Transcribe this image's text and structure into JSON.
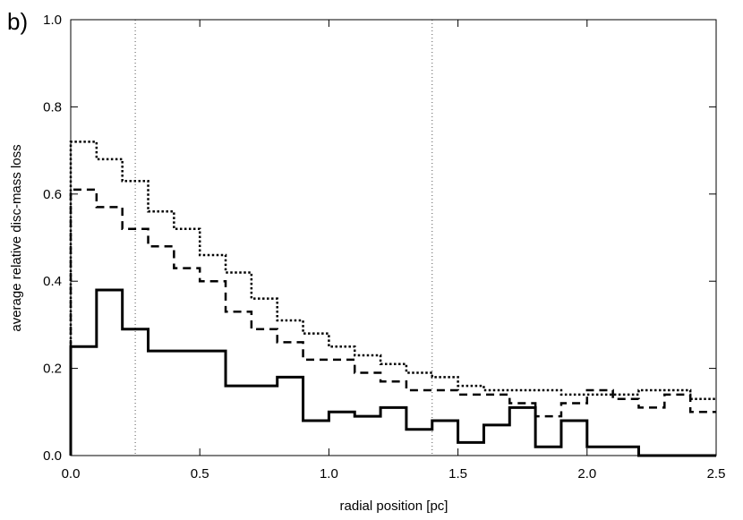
{
  "chart_data": {
    "type": "line",
    "panel_label": "b)",
    "title": "",
    "xlabel": "radial position [pc]",
    "ylabel": "average relative disc-mass loss",
    "xlim": [
      0,
      2.5
    ],
    "ylim": [
      0,
      1.0
    ],
    "x_ticks": [
      0.0,
      0.5,
      1.0,
      1.5,
      2.0,
      2.5
    ],
    "x_tick_labels": [
      "0.0",
      "0.5",
      "1.0",
      "1.5",
      "2.0",
      "2.5"
    ],
    "y_ticks": [
      0.0,
      0.2,
      0.4,
      0.6,
      0.8,
      1.0
    ],
    "y_tick_labels": [
      "0.0",
      "0.2",
      "0.4",
      "0.6",
      "0.8",
      "1.0"
    ],
    "grid": false,
    "reference_lines_x": [
      0.25,
      1.4
    ],
    "bin_edges": [
      0.0,
      0.1,
      0.2,
      0.3,
      0.4,
      0.5,
      0.6,
      0.7,
      0.8,
      0.9,
      1.0,
      1.1,
      1.2,
      1.3,
      1.4,
      1.5,
      1.6,
      1.7,
      1.8,
      1.9,
      2.0,
      2.1,
      2.2,
      2.3,
      2.4,
      2.5
    ],
    "series": [
      {
        "name": "solid",
        "style": "solid",
        "values": [
          0.25,
          0.38,
          0.29,
          0.24,
          0.24,
          0.24,
          0.16,
          0.16,
          0.18,
          0.08,
          0.1,
          0.09,
          0.11,
          0.06,
          0.08,
          0.03,
          0.07,
          0.11,
          0.02,
          0.08,
          0.02,
          0.02,
          0.0,
          0.0,
          0.0
        ]
      },
      {
        "name": "dashed",
        "style": "dashed",
        "values": [
          0.61,
          0.57,
          0.52,
          0.48,
          0.43,
          0.4,
          0.33,
          0.29,
          0.26,
          0.22,
          0.22,
          0.19,
          0.17,
          0.15,
          0.15,
          0.14,
          0.14,
          0.12,
          0.09,
          0.12,
          0.15,
          0.13,
          0.11,
          0.14,
          0.1
        ]
      },
      {
        "name": "dotted",
        "style": "dotted",
        "values": [
          0.72,
          0.68,
          0.63,
          0.56,
          0.52,
          0.46,
          0.42,
          0.36,
          0.31,
          0.28,
          0.25,
          0.23,
          0.21,
          0.19,
          0.18,
          0.16,
          0.15,
          0.15,
          0.15,
          0.14,
          0.14,
          0.14,
          0.15,
          0.15,
          0.13
        ]
      }
    ]
  }
}
